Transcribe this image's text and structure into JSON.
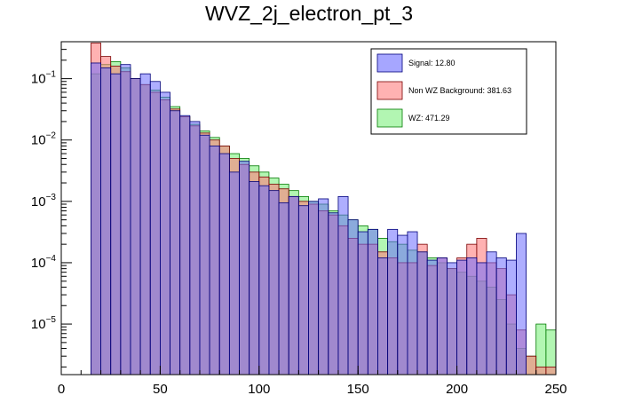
{
  "chart_data": {
    "type": "histogram",
    "title": "WVZ_2j_electron_pt_3",
    "xlabel": "",
    "ylabel": "",
    "xlim": [
      0,
      250
    ],
    "ylim": [
      1.5e-06,
      0.4
    ],
    "log_y": true,
    "bin_width": 5,
    "x_ticks": [
      "0",
      "50",
      "100",
      "150",
      "200",
      "250"
    ],
    "y_ticks": [
      {
        "base": "10",
        "exp": "−1",
        "value": 0.1
      },
      {
        "base": "10",
        "exp": "−2",
        "value": 0.01
      },
      {
        "base": "10",
        "exp": "−3",
        "value": 0.001
      },
      {
        "base": "10",
        "exp": "−4",
        "value": 0.0001
      },
      {
        "base": "10",
        "exp": "−5",
        "value": 1e-05
      }
    ],
    "legend_position": "top-right",
    "series": [
      {
        "name": "Signal: 12.80",
        "color": "#6b6bff",
        "edge": "#00007a",
        "x": [
          15,
          20,
          25,
          30,
          35,
          40,
          45,
          50,
          55,
          60,
          65,
          70,
          75,
          80,
          85,
          90,
          95,
          100,
          105,
          110,
          115,
          120,
          125,
          130,
          135,
          140,
          145,
          150,
          155,
          160,
          165,
          170,
          175,
          180,
          185,
          190,
          195,
          200,
          205,
          210,
          215,
          220,
          225,
          230
        ],
        "values": [
          0.18,
          0.15,
          0.12,
          0.17,
          0.1,
          0.12,
          0.09,
          0.06,
          0.03,
          0.025,
          0.02,
          0.012,
          0.008,
          0.006,
          0.003,
          0.0045,
          0.0021,
          0.0018,
          0.0015,
          0.00095,
          0.0012,
          0.00085,
          0.001,
          0.0011,
          0.00065,
          0.0012,
          0.0005,
          0.00032,
          0.00035,
          0.00012,
          0.00035,
          0.00028,
          0.00032,
          0.00015,
          0.00011,
          0.00012,
          0.0001,
          0.00011,
          0.00012,
          0.0001,
          0.00015,
          0.00012,
          0.00011,
          0.0003
        ]
      },
      {
        "name": "Non WZ Background: 381.63",
        "color": "#ff7e7e",
        "edge": "#7a0000",
        "x": [
          15,
          20,
          25,
          30,
          35,
          40,
          45,
          50,
          55,
          60,
          65,
          70,
          75,
          80,
          85,
          90,
          95,
          100,
          105,
          110,
          115,
          120,
          125,
          130,
          135,
          140,
          145,
          150,
          155,
          160,
          165,
          170,
          175,
          180,
          185,
          190,
          195,
          200,
          205,
          210,
          215,
          220,
          225,
          230,
          235,
          240,
          245
        ],
        "values": [
          0.38,
          0.23,
          0.16,
          0.13,
          0.1,
          0.08,
          0.06,
          0.045,
          0.032,
          0.024,
          0.017,
          0.013,
          0.01,
          0.008,
          0.005,
          0.004,
          0.003,
          0.0025,
          0.0019,
          0.0016,
          0.0012,
          0.001,
          0.0009,
          0.0007,
          0.0006,
          0.0004,
          0.00025,
          0.0002,
          0.0002,
          0.00015,
          0.00012,
          0.0001,
          0.0001,
          0.0002,
          9e-05,
          0.00012,
          8e-05,
          0.00012,
          0.0002,
          0.00025,
          0.0001,
          8e-05,
          3e-05,
          8e-06,
          3e-06,
          2e-06,
          2e-06
        ]
      },
      {
        "name": "WZ: 471.29",
        "color": "#7ef07e",
        "edge": "#007a00",
        "x": [
          15,
          20,
          25,
          30,
          35,
          40,
          45,
          50,
          55,
          60,
          65,
          70,
          75,
          80,
          85,
          90,
          95,
          100,
          105,
          110,
          115,
          120,
          125,
          130,
          135,
          140,
          145,
          150,
          155,
          160,
          165,
          170,
          175,
          180,
          185,
          190,
          195,
          200,
          205,
          210,
          215,
          220,
          225,
          230,
          235,
          240,
          245
        ],
        "values": [
          0.12,
          0.17,
          0.19,
          0.15,
          0.1,
          0.08,
          0.065,
          0.05,
          0.035,
          0.024,
          0.018,
          0.014,
          0.011,
          0.008,
          0.006,
          0.005,
          0.0038,
          0.003,
          0.0024,
          0.0019,
          0.0015,
          0.0012,
          0.001,
          0.0009,
          0.0007,
          0.0006,
          0.0005,
          0.0004,
          0.00035,
          0.00025,
          0.00022,
          0.0002,
          0.00016,
          0.00015,
          0.00012,
          0.0001,
          8e-05,
          7e-05,
          6e-05,
          5e-05,
          4e-05,
          2.5e-05,
          1e-05,
          4e-06,
          3e-06,
          1e-05,
          8e-06
        ]
      }
    ]
  }
}
